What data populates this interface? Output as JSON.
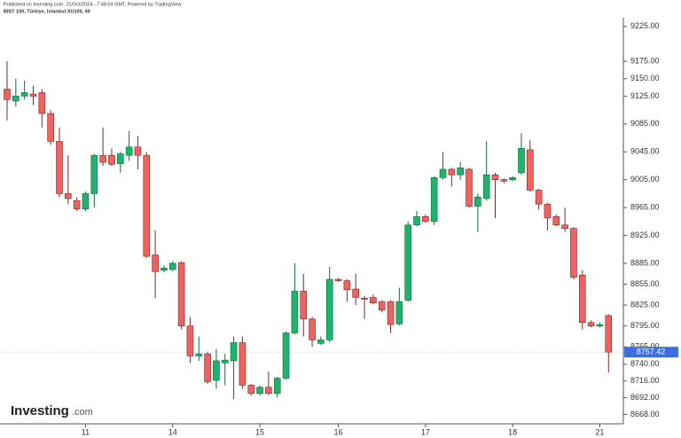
{
  "header": {
    "published": "Published on Investing.com, 21/Oct/2024 - 7:48:04 GMT, Powered by TradingView.",
    "symbol": "BIST 100, Türkiye, Istanbul:XU100, 60"
  },
  "logo": {
    "brand": "Investing",
    "suffix": ".com"
  },
  "chart_data": {
    "type": "candlestick",
    "categories": [
      null,
      null,
      null,
      null,
      null,
      null,
      null,
      null,
      null,
      "11",
      null,
      null,
      null,
      null,
      null,
      null,
      null,
      null,
      null,
      "14",
      null,
      null,
      null,
      null,
      null,
      null,
      null,
      null,
      null,
      "15",
      null,
      null,
      null,
      null,
      null,
      null,
      null,
      null,
      "16",
      null,
      null,
      null,
      null,
      null,
      null,
      null,
      null,
      null,
      "17",
      null,
      null,
      null,
      null,
      null,
      null,
      null,
      null,
      null,
      "18",
      null,
      null,
      null,
      null,
      null,
      null,
      null,
      null,
      null,
      "21",
      null
    ],
    "open": [
      9135,
      9118,
      9125,
      9128,
      9130,
      9100,
      9060,
      8985,
      8975,
      8963,
      8985,
      9040,
      9040,
      9028,
      9040,
      9052,
      9040,
      8897,
      8875,
      8876,
      8886,
      8795,
      8752,
      8755,
      8717,
      8742,
      8745,
      8771,
      8710,
      8698,
      8707,
      8698,
      8720,
      8785,
      8845,
      8805,
      8770,
      8775,
      8862,
      8860,
      8848,
      8835,
      8836,
      8830,
      8830,
      8798,
      8832,
      8940,
      8952,
      8945,
      9008,
      9020,
      9012,
      9020,
      8967,
      8978,
      9012,
      9005,
      9005,
      9015,
      9048,
      8990,
      8970,
      8952,
      8940,
      8935,
      8868,
      8800,
      8795,
      8810
    ],
    "high": [
      9175,
      9150,
      9147,
      9140,
      9135,
      9105,
      9080,
      9040,
      8980,
      8988,
      9042,
      9080,
      9050,
      9045,
      9075,
      9068,
      9045,
      8932,
      8882,
      8888,
      8888,
      8808,
      8780,
      8758,
      8762,
      8755,
      8780,
      8780,
      8712,
      8710,
      8730,
      8722,
      8787,
      8885,
      8870,
      8808,
      8780,
      8880,
      8864,
      8862,
      8870,
      8838,
      8840,
      8832,
      8832,
      8850,
      8945,
      8960,
      8955,
      9010,
      9045,
      9022,
      9030,
      9022,
      8985,
      9060,
      9015,
      9007,
      9010,
      9072,
      9062,
      8992,
      8972,
      8955,
      8965,
      8937,
      8875,
      8803,
      8800,
      8812
    ],
    "low": [
      9090,
      9110,
      9120,
      9112,
      9080,
      9055,
      8980,
      8970,
      8960,
      8960,
      8965,
      9025,
      9025,
      9015,
      9032,
      9020,
      8893,
      8835,
      8872,
      8874,
      8790,
      8742,
      8745,
      8712,
      8705,
      8710,
      8690,
      8705,
      8695,
      8695,
      8696,
      8692,
      8718,
      8783,
      8780,
      8765,
      8768,
      8772,
      8858,
      8830,
      8825,
      8805,
      8826,
      8815,
      8785,
      8796,
      8830,
      8938,
      8943,
      8940,
      9005,
      8995,
      9005,
      8965,
      8930,
      8975,
      8950,
      9000,
      9003,
      9012,
      8988,
      8962,
      8932,
      8938,
      8930,
      8862,
      8790,
      8793,
      8793,
      8728
    ],
    "close": [
      9120,
      9125,
      9130,
      9125,
      9100,
      9060,
      8985,
      8978,
      8963,
      8985,
      9040,
      9030,
      9027,
      9042,
      9052,
      9040,
      8895,
      8873,
      8878,
      8885,
      8795,
      8752,
      8755,
      8715,
      8745,
      8746,
      8771,
      8710,
      8698,
      8707,
      8698,
      8720,
      8785,
      8845,
      8805,
      8775,
      8775,
      8862,
      8860,
      8847,
      8836,
      8834,
      8828,
      8818,
      8797,
      8830,
      8940,
      8952,
      8945,
      9008,
      9020,
      9012,
      9022,
      8967,
      8980,
      9012,
      9005,
      9003,
      9008,
      9050,
      8990,
      8970,
      8950,
      8940,
      8935,
      8865,
      8800,
      8795,
      8797,
      8757.42
    ],
    "up_color": "#1fb36c",
    "down_color": "#f0625f",
    "price_color": "#3d6ee0",
    "ylim": [
      8652,
      9263
    ],
    "yticks": [
      {
        "value": 9225,
        "label": "9225.00"
      },
      {
        "value": 9175,
        "label": "9175.00"
      },
      {
        "value": 9150,
        "label": "9150.00"
      },
      {
        "value": 9125,
        "label": "9125.00"
      },
      {
        "value": 9085,
        "label": "9085.00"
      },
      {
        "value": 9045,
        "label": "9045.00"
      },
      {
        "value": 9005,
        "label": "9005.00"
      },
      {
        "value": 8965,
        "label": "8965.00"
      },
      {
        "value": 8925,
        "label": "8925.00"
      },
      {
        "value": 8885,
        "label": "8885.00"
      },
      {
        "value": 8855,
        "label": "8855.00"
      },
      {
        "value": 8825,
        "label": "8825.00"
      },
      {
        "value": 8795,
        "label": "8795.00"
      },
      {
        "value": 8765,
        "label": "8765.00"
      },
      {
        "value": 8740,
        "label": "8740.00"
      },
      {
        "value": 8716,
        "label": "8716.00"
      },
      {
        "value": 8692,
        "label": "8692.00"
      },
      {
        "value": 8668,
        "label": "8668.00"
      }
    ],
    "grid": false
  }
}
